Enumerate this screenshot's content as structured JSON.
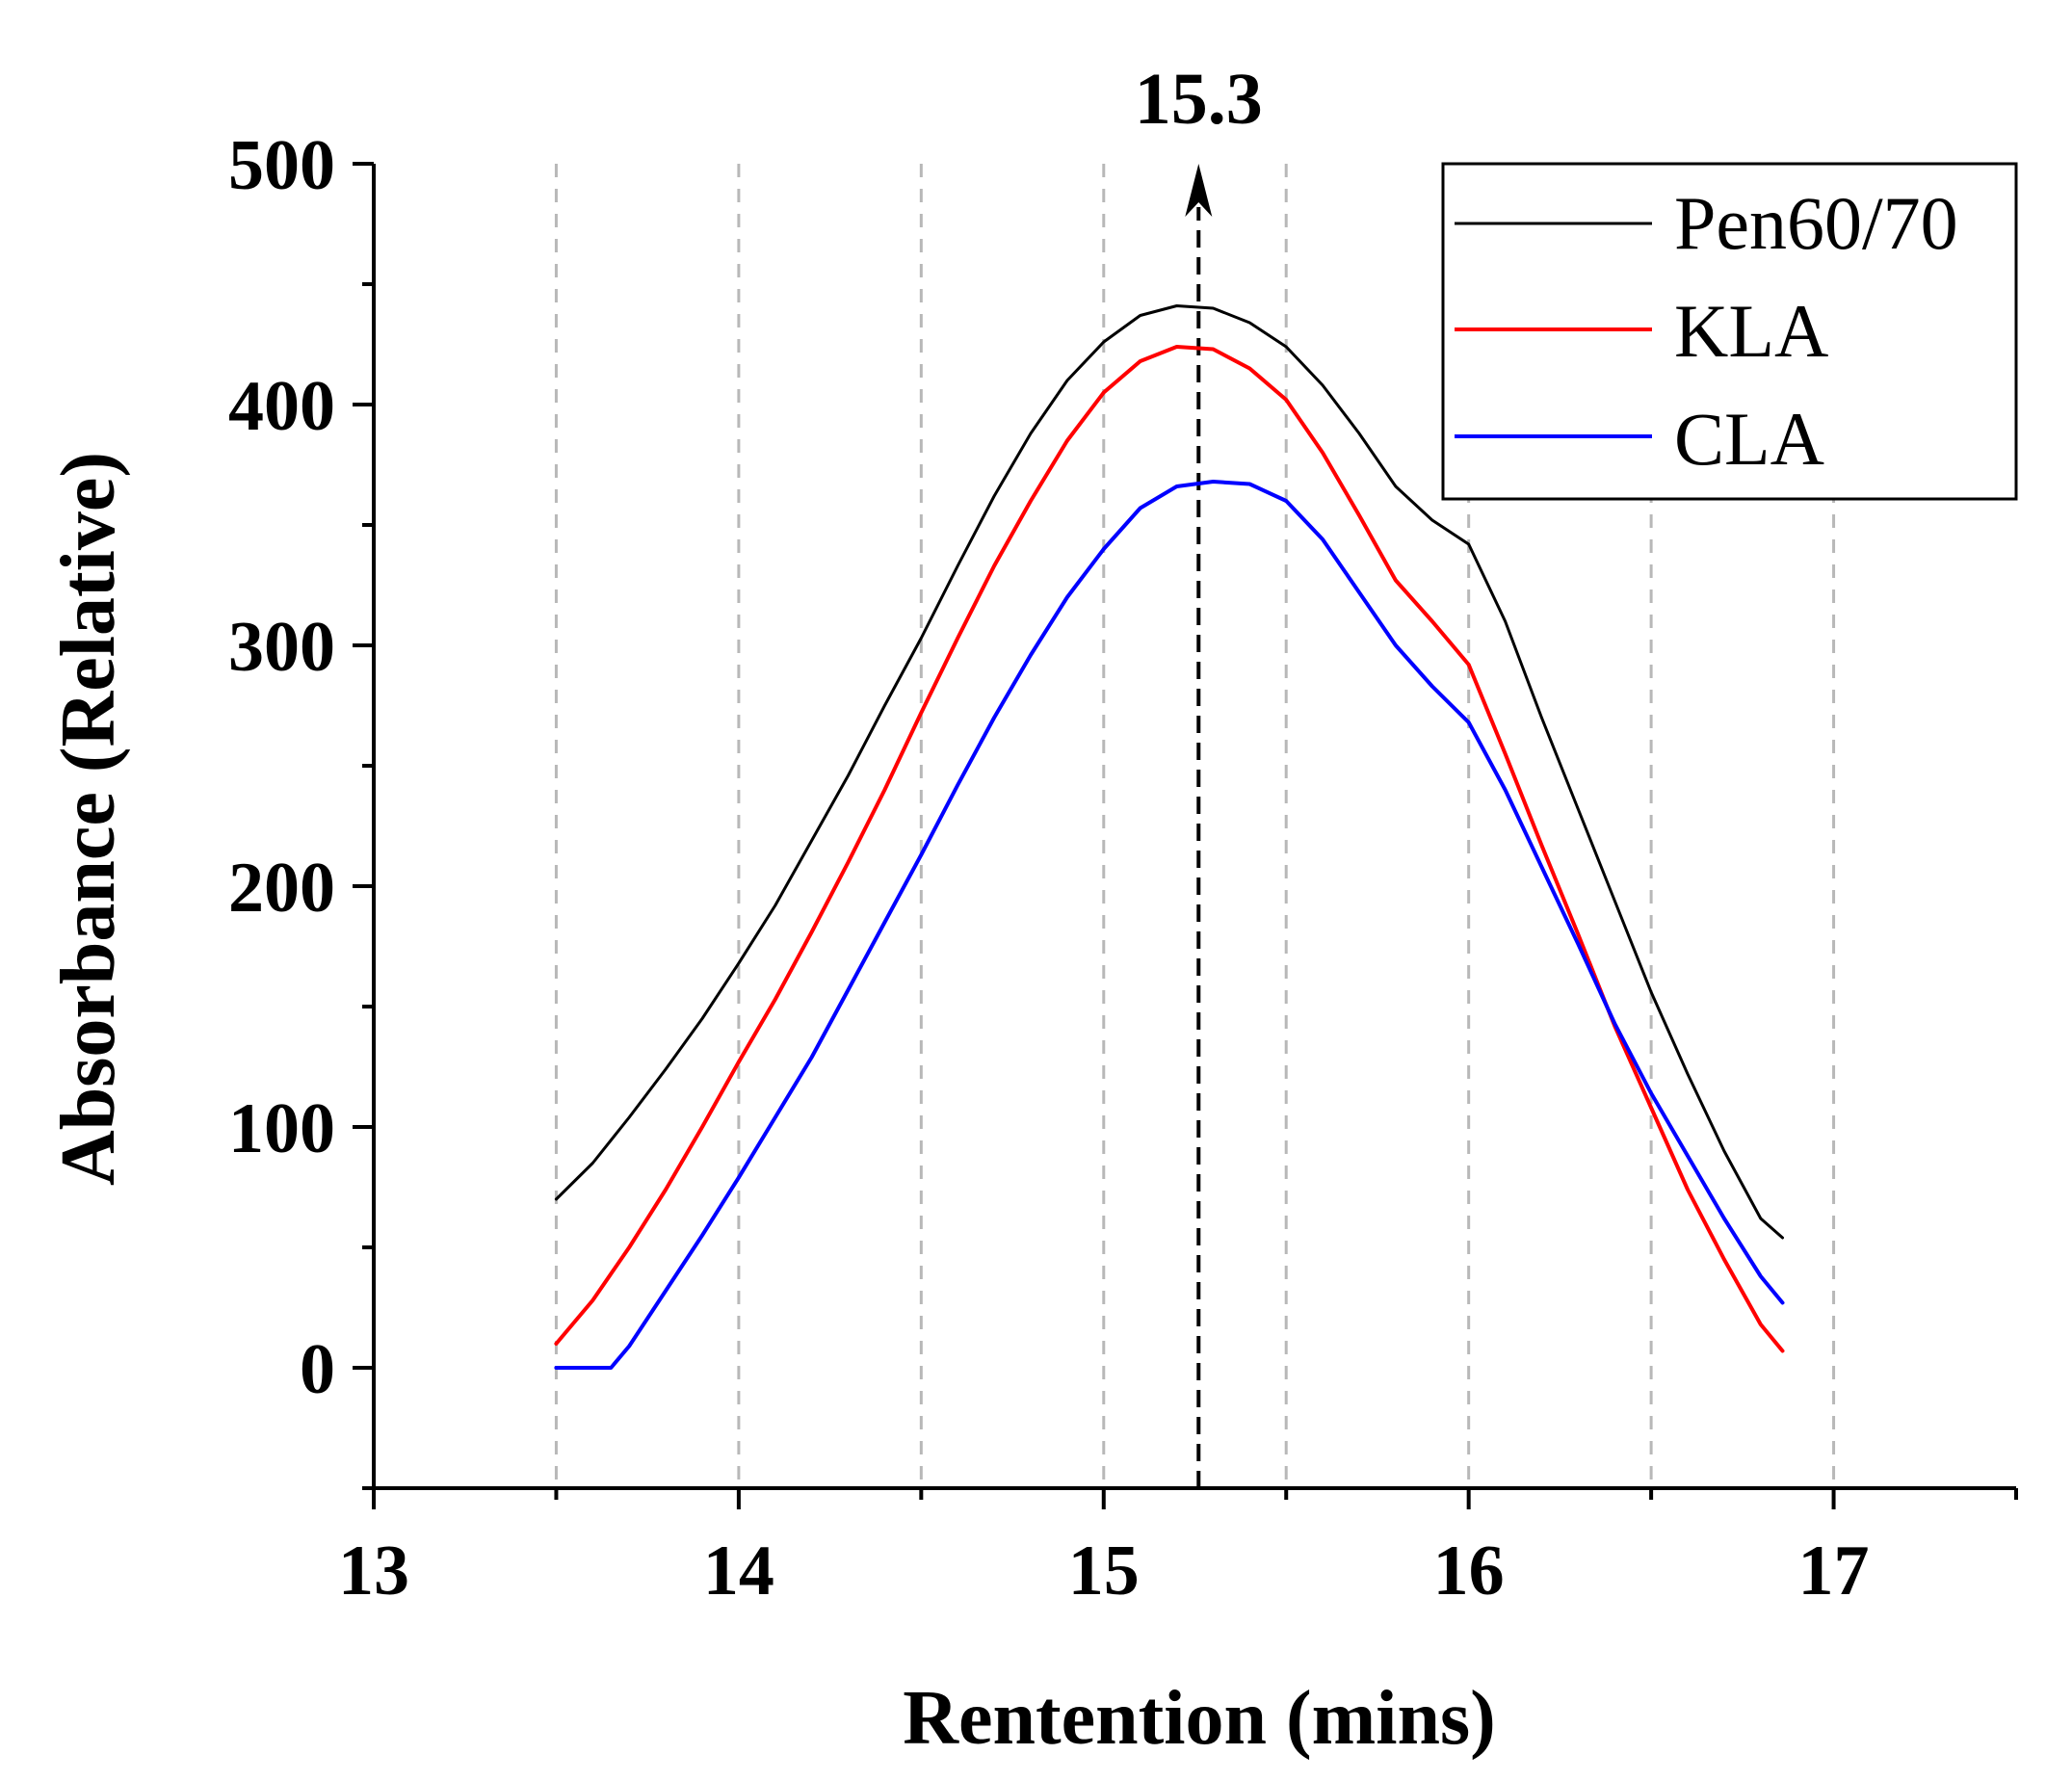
{
  "chart_data": {
    "type": "line",
    "title": "",
    "xlabel": "Rentention (mins)",
    "ylabel": "Absorbance (Relative)",
    "xlim": [
      13,
      17.5
    ],
    "ylim": [
      -50,
      500
    ],
    "xticks": [
      13,
      14,
      15,
      16,
      17
    ],
    "yticks": [
      0,
      100,
      200,
      300,
      400,
      500
    ],
    "grid_x": [
      13.5,
      14,
      14.5,
      15,
      15.5,
      16,
      16.5,
      17
    ],
    "legend_position": "top-right",
    "annotation": {
      "x": 15.26,
      "label": "15.3"
    },
    "series": [
      {
        "name": "Pen60/70",
        "color": "#000000",
        "points": [
          [
            13.5,
            70
          ],
          [
            13.6,
            85
          ],
          [
            13.7,
            104
          ],
          [
            13.8,
            124
          ],
          [
            13.9,
            145
          ],
          [
            14.0,
            168
          ],
          [
            14.1,
            192
          ],
          [
            14.2,
            219
          ],
          [
            14.3,
            246
          ],
          [
            14.4,
            275
          ],
          [
            14.5,
            303
          ],
          [
            14.6,
            333
          ],
          [
            14.7,
            362
          ],
          [
            14.8,
            388
          ],
          [
            14.9,
            410
          ],
          [
            15.0,
            426
          ],
          [
            15.1,
            437
          ],
          [
            15.2,
            441
          ],
          [
            15.3,
            440
          ],
          [
            15.4,
            434
          ],
          [
            15.5,
            424
          ],
          [
            15.6,
            408
          ],
          [
            15.7,
            388
          ],
          [
            15.8,
            366
          ],
          [
            15.9,
            352
          ],
          [
            16.0,
            342
          ],
          [
            16.1,
            310
          ],
          [
            16.2,
            270
          ],
          [
            16.3,
            232
          ],
          [
            16.4,
            194
          ],
          [
            16.5,
            156
          ],
          [
            16.6,
            122
          ],
          [
            16.7,
            90
          ],
          [
            16.8,
            62
          ],
          [
            16.86,
            54
          ]
        ]
      },
      {
        "name": "KLA",
        "color": "#ff0000",
        "points": [
          [
            13.5,
            10
          ],
          [
            13.6,
            28
          ],
          [
            13.7,
            50
          ],
          [
            13.8,
            74
          ],
          [
            13.9,
            100
          ],
          [
            14.0,
            127
          ],
          [
            14.1,
            153
          ],
          [
            14.2,
            181
          ],
          [
            14.3,
            210
          ],
          [
            14.4,
            240
          ],
          [
            14.5,
            272
          ],
          [
            14.6,
            303
          ],
          [
            14.7,
            333
          ],
          [
            14.8,
            360
          ],
          [
            14.9,
            385
          ],
          [
            15.0,
            405
          ],
          [
            15.1,
            418
          ],
          [
            15.2,
            424
          ],
          [
            15.3,
            423
          ],
          [
            15.4,
            415
          ],
          [
            15.5,
            402
          ],
          [
            15.6,
            380
          ],
          [
            15.7,
            354
          ],
          [
            15.8,
            327
          ],
          [
            15.9,
            310
          ],
          [
            16.0,
            292
          ],
          [
            16.1,
            255
          ],
          [
            16.2,
            217
          ],
          [
            16.3,
            180
          ],
          [
            16.4,
            142
          ],
          [
            16.5,
            108
          ],
          [
            16.6,
            74
          ],
          [
            16.7,
            45
          ],
          [
            16.8,
            18
          ],
          [
            16.86,
            7
          ]
        ]
      },
      {
        "name": "CLA",
        "color": "#0000ff",
        "points": [
          [
            13.5,
            0
          ],
          [
            13.65,
            0
          ],
          [
            13.7,
            9
          ],
          [
            13.8,
            32
          ],
          [
            13.9,
            55
          ],
          [
            14.0,
            79
          ],
          [
            14.1,
            104
          ],
          [
            14.2,
            129
          ],
          [
            14.3,
            157
          ],
          [
            14.4,
            185
          ],
          [
            14.5,
            213
          ],
          [
            14.6,
            242
          ],
          [
            14.7,
            270
          ],
          [
            14.8,
            296
          ],
          [
            14.9,
            320
          ],
          [
            15.0,
            340
          ],
          [
            15.1,
            357
          ],
          [
            15.2,
            366
          ],
          [
            15.3,
            368
          ],
          [
            15.4,
            367
          ],
          [
            15.5,
            360
          ],
          [
            15.6,
            344
          ],
          [
            15.7,
            322
          ],
          [
            15.8,
            300
          ],
          [
            15.9,
            283
          ],
          [
            16.0,
            268
          ],
          [
            16.1,
            240
          ],
          [
            16.2,
            208
          ],
          [
            16.3,
            176
          ],
          [
            16.4,
            143
          ],
          [
            16.5,
            114
          ],
          [
            16.6,
            88
          ],
          [
            16.7,
            62
          ],
          [
            16.8,
            38
          ],
          [
            16.86,
            27
          ]
        ]
      }
    ]
  }
}
